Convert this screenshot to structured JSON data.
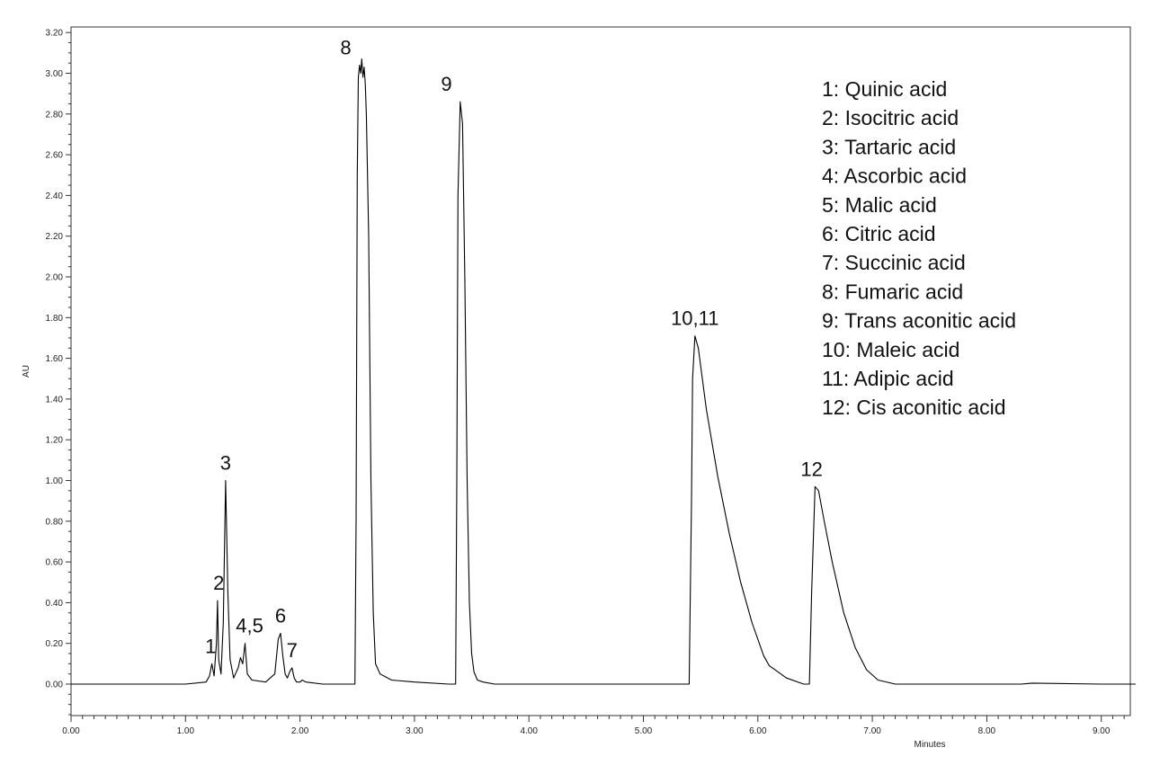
{
  "chart_data": {
    "type": "line",
    "xlabel": "Minutes",
    "ylabel": "AU",
    "xlim": [
      0,
      9.3
    ],
    "ylim": [
      -0.3,
      3.2
    ],
    "x_ticks": [
      "0.00",
      "1.00",
      "2.00",
      "3.00",
      "4.00",
      "5.00",
      "6.00",
      "7.00",
      "8.00",
      "9.00"
    ],
    "y_ticks": [
      "0.00",
      "0.20",
      "0.40",
      "0.60",
      "0.80",
      "1.00",
      "1.20",
      "1.40",
      "1.60",
      "1.80",
      "2.00",
      "2.20",
      "2.40",
      "2.60",
      "2.80",
      "3.00",
      "3.20"
    ],
    "line_color": "#000000",
    "series": [
      {
        "x": [
          0.0,
          1.0,
          1.18,
          1.21,
          1.23,
          1.25,
          1.27,
          1.28,
          1.29,
          1.31,
          1.33,
          1.35,
          1.37,
          1.39,
          1.42,
          1.46,
          1.48,
          1.5,
          1.52,
          1.54,
          1.58,
          1.7,
          1.78,
          1.81,
          1.83,
          1.85,
          1.87,
          1.89,
          1.91,
          1.93,
          1.95,
          1.97,
          2.0,
          2.02,
          2.05,
          2.2,
          2.4,
          2.48,
          2.49,
          2.5,
          2.51,
          2.52,
          2.53,
          2.54,
          2.55,
          2.56,
          2.57,
          2.58,
          2.6,
          2.62,
          2.64,
          2.66,
          2.7,
          2.8,
          3.0,
          3.3,
          3.36,
          3.37,
          3.38,
          3.4,
          3.42,
          3.44,
          3.46,
          3.48,
          3.5,
          3.52,
          3.55,
          3.6,
          3.7,
          4.0,
          5.0,
          5.4,
          5.42,
          5.43,
          5.45,
          5.48,
          5.55,
          5.65,
          5.75,
          5.85,
          5.95,
          6.05,
          6.1,
          6.15,
          6.2,
          6.25,
          6.4,
          6.45,
          6.47,
          6.5,
          6.53,
          6.58,
          6.65,
          6.75,
          6.85,
          6.95,
          7.05,
          7.2,
          7.5,
          8.0,
          8.3,
          8.4,
          9.0,
          9.3
        ],
        "y": [
          0.0,
          0.0,
          0.01,
          0.04,
          0.1,
          0.04,
          0.2,
          0.41,
          0.12,
          0.05,
          0.3,
          1.0,
          0.45,
          0.12,
          0.03,
          0.08,
          0.13,
          0.1,
          0.2,
          0.05,
          0.02,
          0.01,
          0.05,
          0.22,
          0.25,
          0.14,
          0.05,
          0.03,
          0.06,
          0.08,
          0.03,
          0.01,
          0.01,
          0.02,
          0.01,
          0.0,
          0.0,
          0.0,
          0.8,
          2.5,
          2.98,
          3.04,
          3.0,
          3.07,
          2.98,
          3.03,
          2.95,
          2.8,
          2.2,
          1.0,
          0.35,
          0.1,
          0.05,
          0.02,
          0.01,
          0.0,
          0.0,
          1.0,
          2.4,
          2.86,
          2.75,
          2.0,
          1.0,
          0.4,
          0.15,
          0.06,
          0.02,
          0.01,
          0.0,
          0.0,
          0.0,
          0.0,
          0.9,
          1.5,
          1.71,
          1.65,
          1.35,
          1.02,
          0.74,
          0.5,
          0.3,
          0.14,
          0.09,
          0.07,
          0.05,
          0.03,
          0.0,
          0.0,
          0.45,
          0.97,
          0.95,
          0.8,
          0.6,
          0.35,
          0.18,
          0.07,
          0.02,
          0.0,
          0.0,
          0.0,
          0.0,
          0.005,
          0.0,
          0.0
        ]
      }
    ],
    "peak_labels": [
      {
        "text": "1",
        "x": 1.22,
        "y": 0.1
      },
      {
        "text": "2",
        "x": 1.29,
        "y": 0.41
      },
      {
        "text": "3",
        "x": 1.35,
        "y": 1.0
      },
      {
        "text": "4,5",
        "x": 1.56,
        "y": 0.2
      },
      {
        "text": "6",
        "x": 1.83,
        "y": 0.25
      },
      {
        "text": "7",
        "x": 1.93,
        "y": 0.08
      },
      {
        "text": "8",
        "x": 2.4,
        "y": 3.04
      },
      {
        "text": "9",
        "x": 3.28,
        "y": 2.86
      },
      {
        "text": "10,11",
        "x": 5.45,
        "y": 1.71
      },
      {
        "text": "12",
        "x": 6.47,
        "y": 0.97
      }
    ],
    "annotations": [
      "1: Quinic acid",
      "2: Isocitric acid",
      "3: Tartaric acid",
      "4: Ascorbic acid",
      "5: Malic acid",
      "6: Citric acid",
      "7: Succinic acid",
      "8: Fumaric acid",
      "9: Trans aconitic acid",
      "10: Maleic acid",
      "11: Adipic acid",
      "12: Cis aconitic acid"
    ]
  }
}
